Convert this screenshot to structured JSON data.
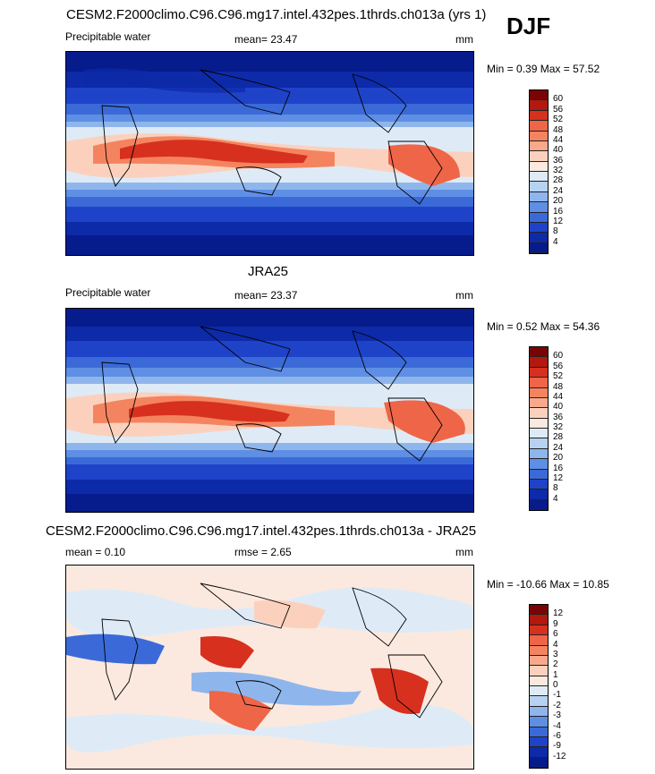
{
  "header": {
    "run_title": "CESM2.F2000climo.C96.C96.mg17.intel.432pes.1thrds.ch013a (yrs 1)",
    "season": "DJF"
  },
  "panel1": {
    "variable": "Precipitable water",
    "mean_label": "mean=",
    "mean_value": "23.47",
    "units": "mm",
    "min_label": "Min =",
    "min_value": "0.39",
    "max_label": "Max =",
    "max_value": "57.52",
    "colorbar_labels": [
      "60",
      "56",
      "52",
      "48",
      "44",
      "40",
      "36",
      "32",
      "28",
      "24",
      "20",
      "16",
      "12",
      "8",
      "4"
    ]
  },
  "panel2": {
    "title": "JRA25",
    "variable": "Precipitable water",
    "mean_label": "mean=",
    "mean_value": "23.37",
    "units": "mm",
    "min_label": "Min =",
    "min_value": "0.52",
    "max_label": "Max =",
    "max_value": "54.36",
    "colorbar_labels": [
      "60",
      "56",
      "52",
      "48",
      "44",
      "40",
      "36",
      "32",
      "28",
      "24",
      "20",
      "16",
      "12",
      "8",
      "4"
    ]
  },
  "panel3": {
    "title": "CESM2.F2000climo.C96.C96.mg17.intel.432pes.1thrds.ch013a - JRA25",
    "mean_label": "mean =",
    "mean_value": "0.10",
    "rmse_label": "rmse =",
    "rmse_value": "2.65",
    "units": "mm",
    "min_label": "Min =",
    "min_value": "-10.66",
    "max_label": "Max =",
    "max_value": "10.85",
    "colorbar_labels": [
      "12",
      "9",
      "6",
      "4",
      "3",
      "2",
      "1",
      "0",
      "-1",
      "-2",
      "-3",
      "-4",
      "-6",
      "-9",
      "-12"
    ]
  },
  "colors": {
    "abs_scale": [
      "#7a0403",
      "#b2180e",
      "#d7301f",
      "#ef6548",
      "#f4845f",
      "#f8a98b",
      "#fbd1bd",
      "#fbe9df",
      "#deebf7",
      "#b7d2f0",
      "#8fb6ec",
      "#5f8fe4",
      "#3b6ad8",
      "#1f43c8",
      "#0d2aa8",
      "#061b8c"
    ],
    "diff_scale": [
      "#7a0403",
      "#b2180e",
      "#d7301f",
      "#ef6548",
      "#f4845f",
      "#f8a98b",
      "#fbd1bd",
      "#fbe9df",
      "#deebf7",
      "#b7d2f0",
      "#8fb6ec",
      "#5f8fe4",
      "#3b6ad8",
      "#1f43c8",
      "#0d2aa8",
      "#061b8c"
    ]
  }
}
